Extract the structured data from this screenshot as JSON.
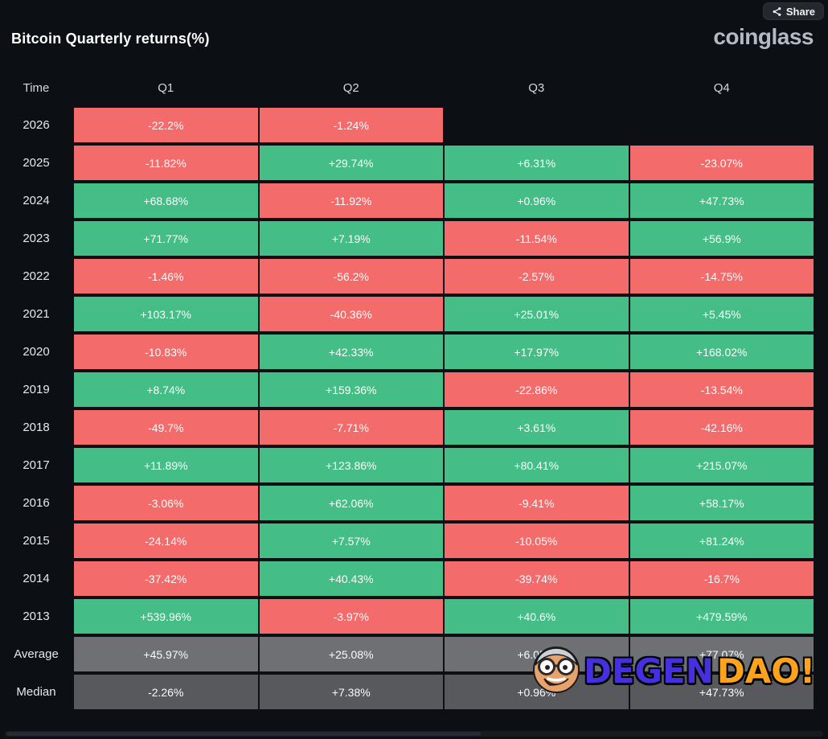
{
  "header": {
    "title": "Bitcoin Quarterly returns(%)",
    "share_label": "Share",
    "brand": "coinglass"
  },
  "watermark": {
    "primary": "DEGEN",
    "secondary": "DAO!"
  },
  "colors": {
    "positive": "#45bd86",
    "negative": "#f36b6b",
    "average": "#6e7074",
    "median": "#57595d",
    "background": "#0c0f14"
  },
  "chart_data": {
    "type": "heatmap",
    "title": "Bitcoin Quarterly returns(%)",
    "columns": [
      "Time",
      "Q1",
      "Q2",
      "Q3",
      "Q4"
    ],
    "rows": [
      {
        "label": "2026",
        "values": [
          "-22.2%",
          "-1.24%",
          "",
          ""
        ],
        "kinds": [
          "neg",
          "neg",
          "empty",
          "empty"
        ]
      },
      {
        "label": "2025",
        "values": [
          "-11.82%",
          "+29.74%",
          "+6.31%",
          "-23.07%"
        ],
        "kinds": [
          "neg",
          "pos",
          "pos",
          "neg"
        ]
      },
      {
        "label": "2024",
        "values": [
          "+68.68%",
          "-11.92%",
          "+0.96%",
          "+47.73%"
        ],
        "kinds": [
          "pos",
          "neg",
          "pos",
          "pos"
        ]
      },
      {
        "label": "2023",
        "values": [
          "+71.77%",
          "+7.19%",
          "-11.54%",
          "+56.9%"
        ],
        "kinds": [
          "pos",
          "pos",
          "neg",
          "pos"
        ]
      },
      {
        "label": "2022",
        "values": [
          "-1.46%",
          "-56.2%",
          "-2.57%",
          "-14.75%"
        ],
        "kinds": [
          "neg",
          "neg",
          "neg",
          "neg"
        ]
      },
      {
        "label": "2021",
        "values": [
          "+103.17%",
          "-40.36%",
          "+25.01%",
          "+5.45%"
        ],
        "kinds": [
          "pos",
          "neg",
          "pos",
          "pos"
        ]
      },
      {
        "label": "2020",
        "values": [
          "-10.83%",
          "+42.33%",
          "+17.97%",
          "+168.02%"
        ],
        "kinds": [
          "neg",
          "pos",
          "pos",
          "pos"
        ]
      },
      {
        "label": "2019",
        "values": [
          "+8.74%",
          "+159.36%",
          "-22.86%",
          "-13.54%"
        ],
        "kinds": [
          "pos",
          "pos",
          "neg",
          "neg"
        ]
      },
      {
        "label": "2018",
        "values": [
          "-49.7%",
          "-7.71%",
          "+3.61%",
          "-42.16%"
        ],
        "kinds": [
          "neg",
          "neg",
          "pos",
          "neg"
        ]
      },
      {
        "label": "2017",
        "values": [
          "+11.89%",
          "+123.86%",
          "+80.41%",
          "+215.07%"
        ],
        "kinds": [
          "pos",
          "pos",
          "pos",
          "pos"
        ]
      },
      {
        "label": "2016",
        "values": [
          "-3.06%",
          "+62.06%",
          "-9.41%",
          "+58.17%"
        ],
        "kinds": [
          "neg",
          "pos",
          "neg",
          "pos"
        ]
      },
      {
        "label": "2015",
        "values": [
          "-24.14%",
          "+7.57%",
          "-10.05%",
          "+81.24%"
        ],
        "kinds": [
          "neg",
          "pos",
          "neg",
          "pos"
        ]
      },
      {
        "label": "2014",
        "values": [
          "-37.42%",
          "+40.43%",
          "-39.74%",
          "-16.7%"
        ],
        "kinds": [
          "neg",
          "pos",
          "neg",
          "neg"
        ]
      },
      {
        "label": "2013",
        "values": [
          "+539.96%",
          "-3.97%",
          "+40.6%",
          "+479.59%"
        ],
        "kinds": [
          "pos",
          "neg",
          "pos",
          "pos"
        ]
      },
      {
        "label": "Average",
        "values": [
          "+45.97%",
          "+25.08%",
          "+6.05%",
          "+77.07%"
        ],
        "kinds": [
          "avg",
          "avg",
          "avg",
          "avg"
        ]
      },
      {
        "label": "Median",
        "values": [
          "-2.26%",
          "+7.38%",
          "+0.96%",
          "+47.73%"
        ],
        "kinds": [
          "median",
          "median",
          "median",
          "median"
        ]
      }
    ]
  }
}
